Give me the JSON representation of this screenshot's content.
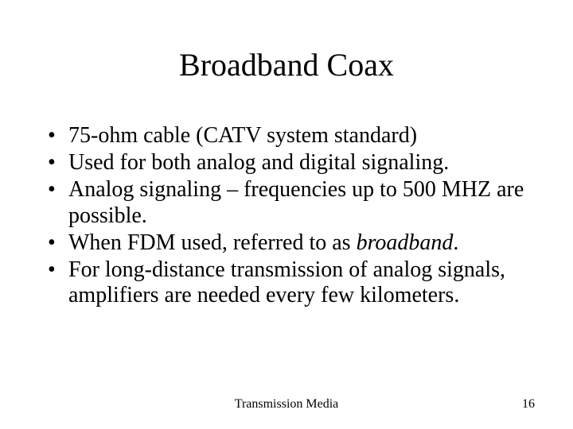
{
  "slide": {
    "title": "Broadband Coax",
    "title_fontsize": 40,
    "body_fontsize": 28,
    "footer_fontsize": 16,
    "text_color": "#000000",
    "background_color": "#ffffff",
    "font_family": "Times New Roman",
    "bullet_marker": "•",
    "bullets": [
      {
        "text": "75-ohm cable (CATV system standard)"
      },
      {
        "text": "Used for both analog and digital signaling."
      },
      {
        "text": "Analog signaling – frequencies up to 500 MHZ are possible."
      },
      {
        "text_pre": "When FDM used, referred to as ",
        "text_italic": "broadband",
        "text_post": "."
      },
      {
        "text": "For long-distance transmission of analog signals, amplifiers are needed every few kilometers."
      }
    ],
    "footer_center": "Transmission Media",
    "page_number": "16"
  }
}
